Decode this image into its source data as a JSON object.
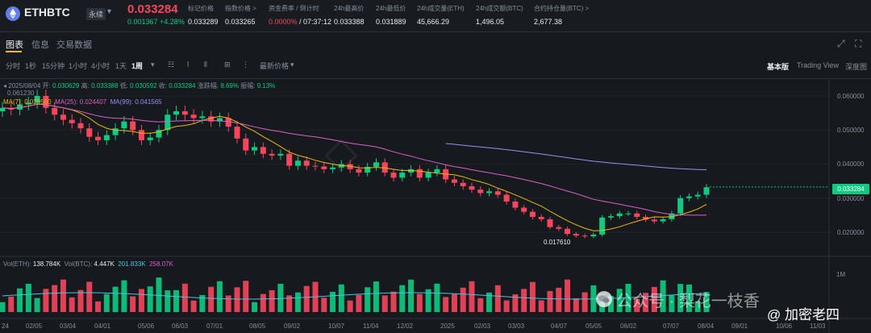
{
  "header": {
    "symbol": "ETHBTC",
    "badge": "永续",
    "price": "0.033284",
    "change": "0.001367 +4.28%",
    "stats": [
      {
        "label": "标记价格",
        "value": "0.033289"
      },
      {
        "label": "指数价格 >",
        "value": "0.033265"
      },
      {
        "label": "资金费率 / 倒计时",
        "value_red": "0.0000%",
        "value": " / 07:37:12"
      },
      {
        "label": "24h最高价",
        "value": "0.033388"
      },
      {
        "label": "24h最低价",
        "value": "0.031889"
      },
      {
        "label": "24h成交量(ETH)",
        "value": "45,666.29"
      },
      {
        "label": "24h成交额(BTC)",
        "value": "1,496.05"
      },
      {
        "label": "合约持仓量(BTC) >",
        "value": "2,677.38"
      }
    ]
  },
  "tabs": [
    "图表",
    "信息",
    "交易数据"
  ],
  "toolbar": {
    "intervals": [
      "分时",
      "1秒",
      "15分钟",
      "1小时",
      "4小时",
      "1天",
      "1周"
    ],
    "active_interval": "1周",
    "price_type": "最新价格",
    "views": [
      "基本版",
      "Trading View",
      "深度图"
    ]
  },
  "ohlc": {
    "date": "2025/08/04",
    "open_label": "开:",
    "open": "0.030629",
    "high_label": "高:",
    "high": "0.033388",
    "low_label": "低:",
    "low": "0.030592",
    "close_label": "收:",
    "close": "0.033284",
    "chg_label": "涨跌幅:",
    "chg": "8.69%",
    "amp_label": "振幅:",
    "amp": "9.13%"
  },
  "ma": {
    "ma7_label": "MA(7):",
    "ma7": "0.029560",
    "ma25_label": "MA(25):",
    "ma25": "0.024407",
    "ma99_label": "MA(99):",
    "ma99": "0.041565",
    "colors": {
      "ma7": "#f0b90b",
      "ma25": "#e05dc9",
      "ma99": "#9c8cf5"
    }
  },
  "vol": {
    "eth_label": "Vol(ETH):",
    "eth": "138.784K",
    "btc_label": "Vol(BTC):",
    "btc": "4.447K",
    "ma1": "201.833K",
    "ma2": "258.07K"
  },
  "chart_data": {
    "type": "candlestick",
    "y_ticks": [
      "0.060000",
      "0.050000",
      "0.040000",
      "0.030000",
      "0.020000"
    ],
    "x_ticks": [
      "24",
      "02/05",
      "03/04",
      "04/01",
      "05/06",
      "06/03",
      "07/01",
      "08/05",
      "09/02",
      "10/07",
      "11/04",
      "12/02",
      "2025",
      "02/03",
      "03/03",
      "04/07",
      "05/05",
      "06/02",
      "07/07",
      "08/04",
      "09/01",
      "10/06",
      "11/03"
    ],
    "high_label": "0.061230",
    "low_label": "0.017610",
    "last_price": "0.033284",
    "vol_axis_label": "1M",
    "closes": [
      0.0565,
      0.056,
      0.0575,
      0.058,
      0.06,
      0.0565,
      0.0545,
      0.053,
      0.052,
      0.0505,
      0.048,
      0.047,
      0.0485,
      0.0505,
      0.0525,
      0.05,
      0.047,
      0.0478,
      0.05,
      0.0545,
      0.0555,
      0.0545,
      0.0535,
      0.054,
      0.0525,
      0.0535,
      0.051,
      0.0475,
      0.044,
      0.045,
      0.043,
      0.0425,
      0.043,
      0.0395,
      0.041,
      0.0395,
      0.0393,
      0.0385,
      0.039,
      0.04,
      0.0385,
      0.0375,
      0.0392,
      0.0405,
      0.0375,
      0.036,
      0.0375,
      0.0385,
      0.036,
      0.0375,
      0.0385,
      0.0355,
      0.0345,
      0.0335,
      0.0325,
      0.0315,
      0.032,
      0.031,
      0.029,
      0.0272,
      0.026,
      0.0245,
      0.0238,
      0.0215,
      0.021,
      0.0195,
      0.019,
      0.0188,
      0.0193,
      0.0243,
      0.0247,
      0.0255,
      0.0255,
      0.0245,
      0.0237,
      0.0232,
      0.0238,
      0.0255,
      0.03,
      0.0305,
      0.031,
      0.0332
    ]
  },
  "watermark": {
    "line1": "公众号 · 梨花一枝香",
    "line2": "@ 加密老四"
  }
}
